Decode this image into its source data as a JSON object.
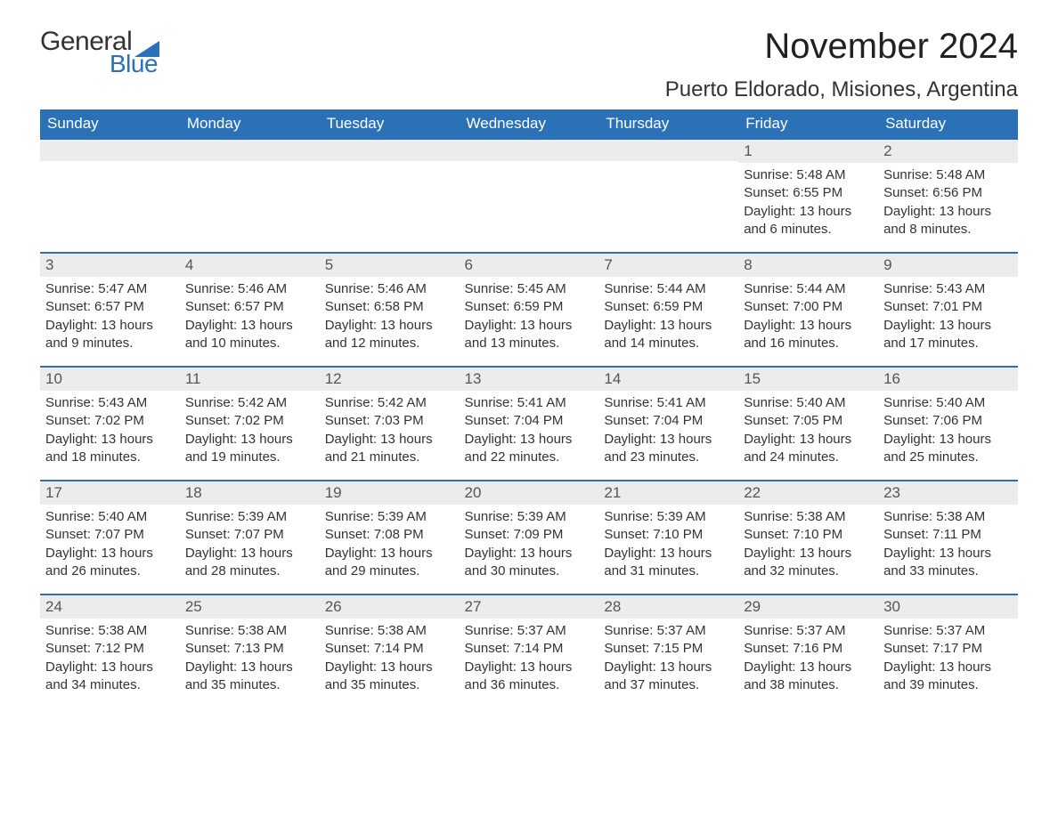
{
  "logo": {
    "word1": "General",
    "word2": "Blue",
    "accent": "#2a71b8",
    "text_color": "#333333"
  },
  "title": "November 2024",
  "location": "Puerto Eldorado, Misiones, Argentina",
  "colors": {
    "header_bg": "#2a71b8",
    "header_text": "#ffffff",
    "daynum_bg": "#ececec",
    "row_border": "#2a71b8",
    "body_text": "#333333"
  },
  "weekdays": [
    "Sunday",
    "Monday",
    "Tuesday",
    "Wednesday",
    "Thursday",
    "Friday",
    "Saturday"
  ],
  "weeks": [
    [
      null,
      null,
      null,
      null,
      null,
      {
        "n": "1",
        "sr": "Sunrise: 5:48 AM",
        "ss": "Sunset: 6:55 PM",
        "dl": "Daylight: 13 hours and 6 minutes."
      },
      {
        "n": "2",
        "sr": "Sunrise: 5:48 AM",
        "ss": "Sunset: 6:56 PM",
        "dl": "Daylight: 13 hours and 8 minutes."
      }
    ],
    [
      {
        "n": "3",
        "sr": "Sunrise: 5:47 AM",
        "ss": "Sunset: 6:57 PM",
        "dl": "Daylight: 13 hours and 9 minutes."
      },
      {
        "n": "4",
        "sr": "Sunrise: 5:46 AM",
        "ss": "Sunset: 6:57 PM",
        "dl": "Daylight: 13 hours and 10 minutes."
      },
      {
        "n": "5",
        "sr": "Sunrise: 5:46 AM",
        "ss": "Sunset: 6:58 PM",
        "dl": "Daylight: 13 hours and 12 minutes."
      },
      {
        "n": "6",
        "sr": "Sunrise: 5:45 AM",
        "ss": "Sunset: 6:59 PM",
        "dl": "Daylight: 13 hours and 13 minutes."
      },
      {
        "n": "7",
        "sr": "Sunrise: 5:44 AM",
        "ss": "Sunset: 6:59 PM",
        "dl": "Daylight: 13 hours and 14 minutes."
      },
      {
        "n": "8",
        "sr": "Sunrise: 5:44 AM",
        "ss": "Sunset: 7:00 PM",
        "dl": "Daylight: 13 hours and 16 minutes."
      },
      {
        "n": "9",
        "sr": "Sunrise: 5:43 AM",
        "ss": "Sunset: 7:01 PM",
        "dl": "Daylight: 13 hours and 17 minutes."
      }
    ],
    [
      {
        "n": "10",
        "sr": "Sunrise: 5:43 AM",
        "ss": "Sunset: 7:02 PM",
        "dl": "Daylight: 13 hours and 18 minutes."
      },
      {
        "n": "11",
        "sr": "Sunrise: 5:42 AM",
        "ss": "Sunset: 7:02 PM",
        "dl": "Daylight: 13 hours and 19 minutes."
      },
      {
        "n": "12",
        "sr": "Sunrise: 5:42 AM",
        "ss": "Sunset: 7:03 PM",
        "dl": "Daylight: 13 hours and 21 minutes."
      },
      {
        "n": "13",
        "sr": "Sunrise: 5:41 AM",
        "ss": "Sunset: 7:04 PM",
        "dl": "Daylight: 13 hours and 22 minutes."
      },
      {
        "n": "14",
        "sr": "Sunrise: 5:41 AM",
        "ss": "Sunset: 7:04 PM",
        "dl": "Daylight: 13 hours and 23 minutes."
      },
      {
        "n": "15",
        "sr": "Sunrise: 5:40 AM",
        "ss": "Sunset: 7:05 PM",
        "dl": "Daylight: 13 hours and 24 minutes."
      },
      {
        "n": "16",
        "sr": "Sunrise: 5:40 AM",
        "ss": "Sunset: 7:06 PM",
        "dl": "Daylight: 13 hours and 25 minutes."
      }
    ],
    [
      {
        "n": "17",
        "sr": "Sunrise: 5:40 AM",
        "ss": "Sunset: 7:07 PM",
        "dl": "Daylight: 13 hours and 26 minutes."
      },
      {
        "n": "18",
        "sr": "Sunrise: 5:39 AM",
        "ss": "Sunset: 7:07 PM",
        "dl": "Daylight: 13 hours and 28 minutes."
      },
      {
        "n": "19",
        "sr": "Sunrise: 5:39 AM",
        "ss": "Sunset: 7:08 PM",
        "dl": "Daylight: 13 hours and 29 minutes."
      },
      {
        "n": "20",
        "sr": "Sunrise: 5:39 AM",
        "ss": "Sunset: 7:09 PM",
        "dl": "Daylight: 13 hours and 30 minutes."
      },
      {
        "n": "21",
        "sr": "Sunrise: 5:39 AM",
        "ss": "Sunset: 7:10 PM",
        "dl": "Daylight: 13 hours and 31 minutes."
      },
      {
        "n": "22",
        "sr": "Sunrise: 5:38 AM",
        "ss": "Sunset: 7:10 PM",
        "dl": "Daylight: 13 hours and 32 minutes."
      },
      {
        "n": "23",
        "sr": "Sunrise: 5:38 AM",
        "ss": "Sunset: 7:11 PM",
        "dl": "Daylight: 13 hours and 33 minutes."
      }
    ],
    [
      {
        "n": "24",
        "sr": "Sunrise: 5:38 AM",
        "ss": "Sunset: 7:12 PM",
        "dl": "Daylight: 13 hours and 34 minutes."
      },
      {
        "n": "25",
        "sr": "Sunrise: 5:38 AM",
        "ss": "Sunset: 7:13 PM",
        "dl": "Daylight: 13 hours and 35 minutes."
      },
      {
        "n": "26",
        "sr": "Sunrise: 5:38 AM",
        "ss": "Sunset: 7:14 PM",
        "dl": "Daylight: 13 hours and 35 minutes."
      },
      {
        "n": "27",
        "sr": "Sunrise: 5:37 AM",
        "ss": "Sunset: 7:14 PM",
        "dl": "Daylight: 13 hours and 36 minutes."
      },
      {
        "n": "28",
        "sr": "Sunrise: 5:37 AM",
        "ss": "Sunset: 7:15 PM",
        "dl": "Daylight: 13 hours and 37 minutes."
      },
      {
        "n": "29",
        "sr": "Sunrise: 5:37 AM",
        "ss": "Sunset: 7:16 PM",
        "dl": "Daylight: 13 hours and 38 minutes."
      },
      {
        "n": "30",
        "sr": "Sunrise: 5:37 AM",
        "ss": "Sunset: 7:17 PM",
        "dl": "Daylight: 13 hours and 39 minutes."
      }
    ]
  ]
}
